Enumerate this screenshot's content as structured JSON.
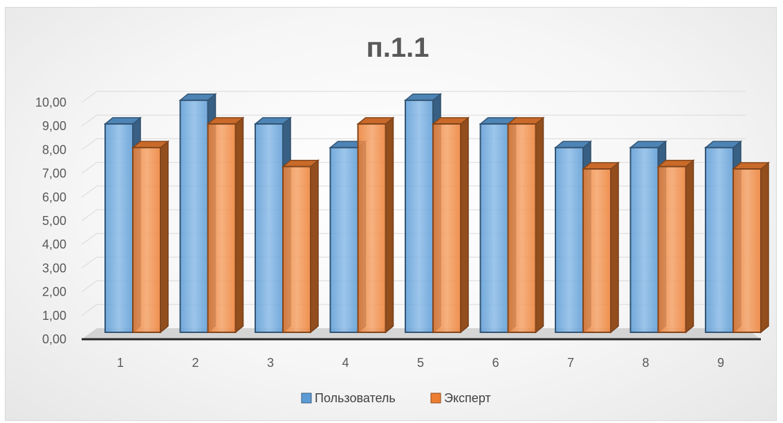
{
  "chart_data": {
    "type": "bar",
    "title": "п.1.1",
    "categories": [
      "1",
      "2",
      "3",
      "4",
      "5",
      "6",
      "7",
      "8",
      "9"
    ],
    "series": [
      {
        "name": "Пользователь",
        "color": "#5B9BD5",
        "values": [
          8.8,
          9.8,
          8.8,
          7.8,
          9.8,
          8.8,
          7.8,
          7.8,
          7.8
        ]
      },
      {
        "name": "Эксперт",
        "color": "#ED7D31",
        "values": [
          7.8,
          8.8,
          7.0,
          8.8,
          8.8,
          8.8,
          6.9,
          7.0,
          6.9
        ]
      }
    ],
    "yticks": [
      "0,00",
      "1,00",
      "2,00",
      "3,00",
      "4,00",
      "5,00",
      "6,00",
      "7,00",
      "8,00",
      "9,00",
      "10,00"
    ],
    "ylim": [
      0,
      10
    ],
    "grid": true,
    "legend_position": "bottom"
  }
}
